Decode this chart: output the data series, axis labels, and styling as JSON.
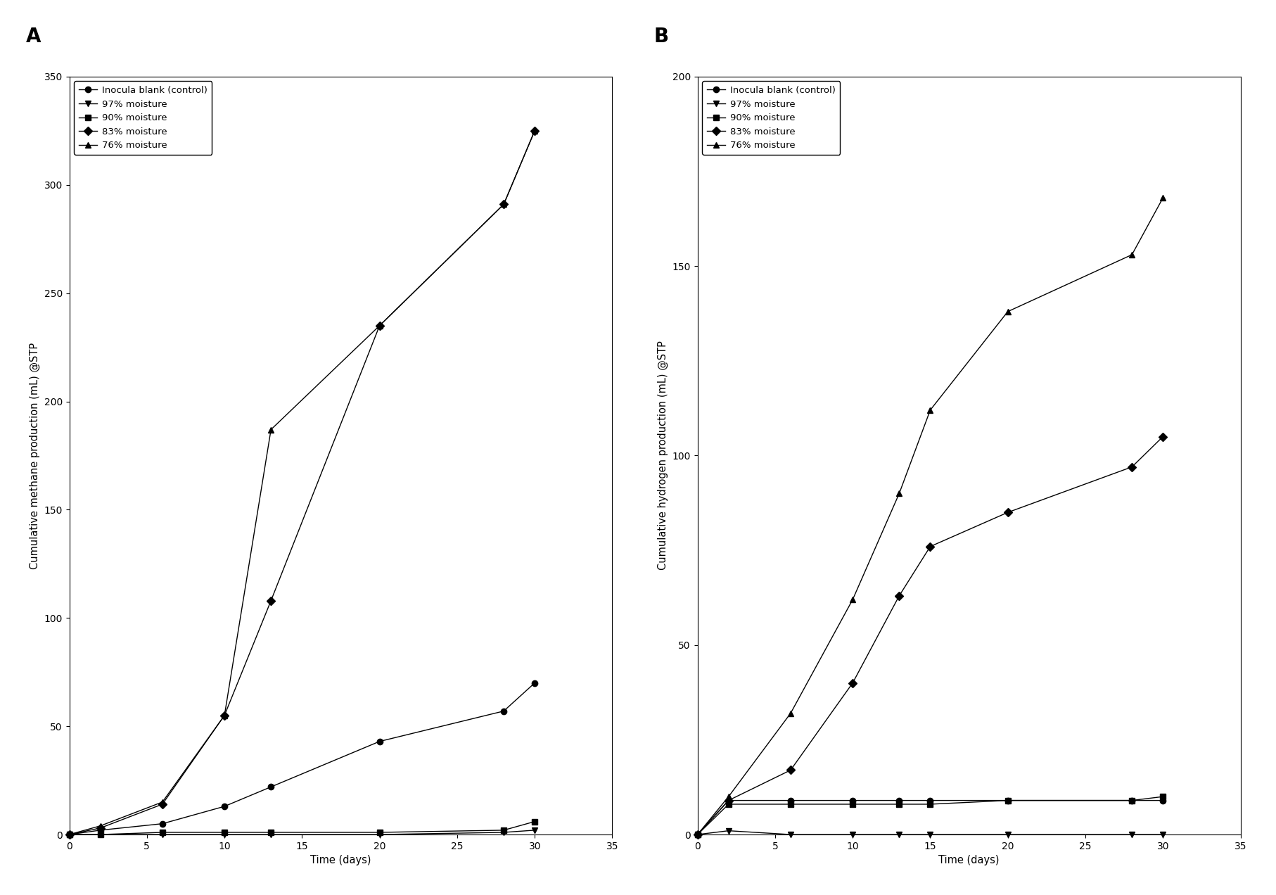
{
  "panel_A": {
    "title": "A",
    "ylabel": "Cumulative methane production (mL) @STP",
    "xlabel": "Time (days)",
    "xlim": [
      0,
      35
    ],
    "ylim": [
      0,
      350
    ],
    "xticks": [
      0,
      5,
      10,
      15,
      20,
      25,
      30,
      35
    ],
    "yticks": [
      0,
      50,
      100,
      150,
      200,
      250,
      300,
      350
    ],
    "series": [
      {
        "label": "Inocula blank (control)",
        "marker": "o",
        "x": [
          0,
          2,
          6,
          10,
          13,
          20,
          28,
          30
        ],
        "y": [
          0,
          2,
          5,
          13,
          22,
          43,
          57,
          70
        ]
      },
      {
        "label": "97% moisture",
        "marker": "v",
        "x": [
          0,
          2,
          6,
          10,
          13,
          20,
          28,
          30
        ],
        "y": [
          0,
          0,
          0,
          0,
          0,
          0,
          1,
          2
        ]
      },
      {
        "label": "90% moisture",
        "marker": "s",
        "x": [
          0,
          2,
          6,
          10,
          13,
          20,
          28,
          30
        ],
        "y": [
          0,
          0,
          1,
          1,
          1,
          1,
          2,
          6
        ]
      },
      {
        "label": "83% moisture",
        "marker": "D",
        "x": [
          0,
          2,
          6,
          10,
          13,
          20,
          28,
          30
        ],
        "y": [
          0,
          3,
          14,
          55,
          108,
          235,
          291,
          325
        ]
      },
      {
        "label": "76% moisture",
        "marker": "^",
        "x": [
          0,
          2,
          6,
          10,
          13,
          20,
          28,
          30
        ],
        "y": [
          0,
          4,
          15,
          55,
          187,
          235,
          291,
          325
        ]
      }
    ]
  },
  "panel_B": {
    "title": "B",
    "ylabel": "Cumulative hydrogen production (mL) @STP",
    "xlabel": "Time (days)",
    "xlim": [
      0,
      35
    ],
    "ylim": [
      0,
      200
    ],
    "xticks": [
      0,
      5,
      10,
      15,
      20,
      25,
      30,
      35
    ],
    "yticks": [
      0,
      50,
      100,
      150,
      200
    ],
    "series": [
      {
        "label": "Inocula blank (control)",
        "marker": "o",
        "x": [
          0,
          2,
          6,
          10,
          13,
          15,
          20,
          28,
          30
        ],
        "y": [
          0,
          9,
          9,
          9,
          9,
          9,
          9,
          9,
          9
        ]
      },
      {
        "label": "97% moisture",
        "marker": "v",
        "x": [
          0,
          2,
          6,
          10,
          13,
          15,
          20,
          28,
          30
        ],
        "y": [
          0,
          1,
          0,
          0,
          0,
          0,
          0,
          0,
          0
        ]
      },
      {
        "label": "90% moisture",
        "marker": "s",
        "x": [
          0,
          2,
          6,
          10,
          13,
          15,
          20,
          28,
          30
        ],
        "y": [
          0,
          8,
          8,
          8,
          8,
          8,
          9,
          9,
          10
        ]
      },
      {
        "label": "83% moisture",
        "marker": "D",
        "x": [
          0,
          2,
          6,
          10,
          13,
          15,
          20,
          28,
          30
        ],
        "y": [
          0,
          9,
          17,
          40,
          63,
          76,
          85,
          97,
          105
        ]
      },
      {
        "label": "76% moisture",
        "marker": "^",
        "x": [
          0,
          2,
          6,
          10,
          13,
          15,
          20,
          28,
          30
        ],
        "y": [
          0,
          10,
          32,
          62,
          90,
          112,
          138,
          153,
          168
        ]
      }
    ]
  },
  "line_color": "#000000",
  "marker_size": 6,
  "line_width": 1.0,
  "legend_fontsize": 9.5,
  "axis_label_fontsize": 10.5,
  "tick_fontsize": 10,
  "panel_label_fontsize": 20,
  "background_color": "#ffffff"
}
